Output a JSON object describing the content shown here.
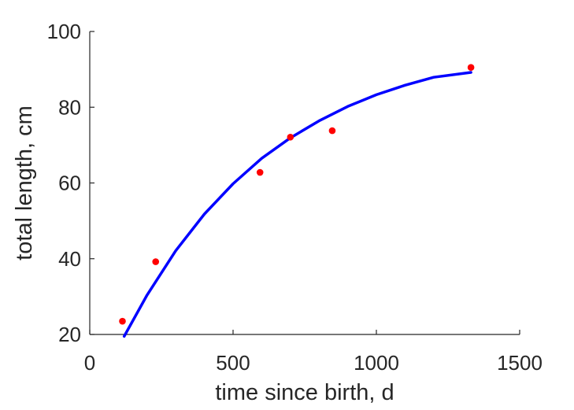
{
  "chart_data": {
    "type": "scatter",
    "title": "",
    "xlabel": "time since birth, d",
    "ylabel": "total length, cm",
    "xlim": [
      0,
      1500
    ],
    "ylim": [
      20,
      100
    ],
    "grid": false,
    "x_ticks": [
      {
        "value": 0,
        "label": "0"
      },
      {
        "value": 500,
        "label": "500"
      },
      {
        "value": 1000,
        "label": "1000"
      },
      {
        "value": 1500,
        "label": "1500"
      }
    ],
    "y_ticks": [
      {
        "value": 20,
        "label": "20"
      },
      {
        "value": 40,
        "label": "40"
      },
      {
        "value": 60,
        "label": "60"
      },
      {
        "value": 80,
        "label": "80"
      },
      {
        "value": 100,
        "label": "100"
      }
    ],
    "series": [
      {
        "kind": "points",
        "color": "#ff0000",
        "x": [
          114,
          230,
          594,
          700,
          846,
          1330
        ],
        "y": [
          23.5,
          39.2,
          62.8,
          72.1,
          73.8,
          90.5
        ]
      },
      {
        "kind": "line",
        "color": "#0000ff",
        "x": [
          120,
          200,
          300,
          400,
          500,
          600,
          700,
          800,
          900,
          1000,
          1100,
          1200,
          1330
        ],
        "y": [
          19.5,
          30.4,
          42.1,
          51.8,
          59.8,
          66.5,
          71.9,
          76.4,
          80.2,
          83.3,
          85.8,
          87.9,
          89.2
        ]
      }
    ]
  }
}
